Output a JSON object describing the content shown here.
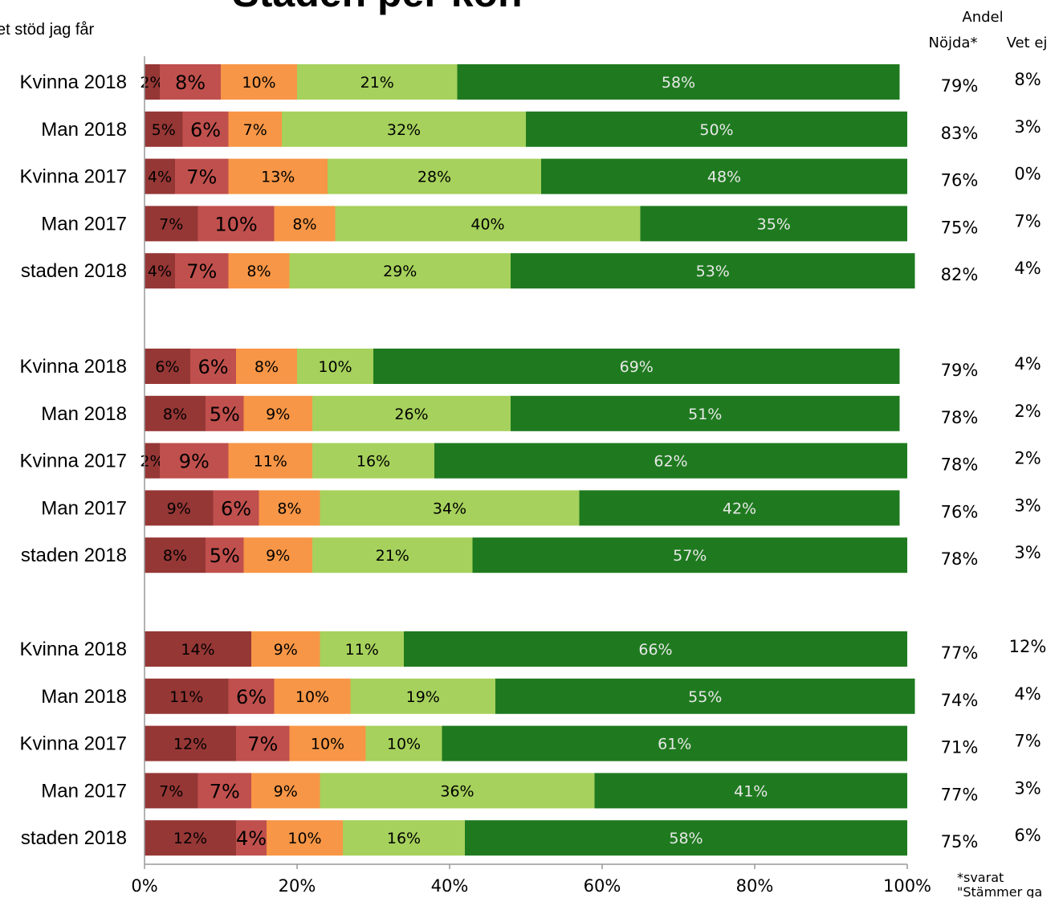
{
  "page": {
    "title": "Staden per kön",
    "top_left_text": "et stöd jag får",
    "col_header_line1": "Andel",
    "col_header_nojda": "Nöjda*",
    "col_header_vetej": "Vet ej",
    "footnote_line1": "*svarat",
    "footnote_line2": "\"Stämmer ga"
  },
  "chart_data": {
    "type": "bar",
    "orientation": "horizontal",
    "stacked": true,
    "xlim": [
      0,
      100
    ],
    "x_ticks": [
      "0%",
      "20%",
      "40%",
      "60%",
      "80%",
      "100%"
    ],
    "grid": false,
    "segment_colors": [
      "#953735",
      "#c0504d",
      "#f79646",
      "#a6d15c",
      "#1f7a1f"
    ],
    "groups": [
      {
        "rows": [
          {
            "label": "Kvinna 2018",
            "values": [
              2,
              8,
              10,
              21,
              58
            ],
            "nojda": "79%",
            "vet_ej": "8%"
          },
          {
            "label": "Man 2018",
            "values": [
              5,
              6,
              7,
              32,
              50
            ],
            "nojda": "83%",
            "vet_ej": "3%"
          },
          {
            "label": "Kvinna 2017",
            "values": [
              4,
              7,
              13,
              28,
              48
            ],
            "nojda": "76%",
            "vet_ej": "0%"
          },
          {
            "label": "Man 2017",
            "values": [
              7,
              10,
              8,
              40,
              35
            ],
            "nojda": "75%",
            "vet_ej": "7%"
          },
          {
            "label": "staden 2018",
            "values": [
              4,
              7,
              8,
              29,
              53
            ],
            "nojda": "82%",
            "vet_ej": "4%"
          }
        ]
      },
      {
        "rows": [
          {
            "label": "Kvinna 2018",
            "values": [
              6,
              6,
              8,
              10,
              69
            ],
            "nojda": "79%",
            "vet_ej": "4%"
          },
          {
            "label": "Man 2018",
            "values": [
              8,
              5,
              9,
              26,
              51
            ],
            "nojda": "78%",
            "vet_ej": "2%"
          },
          {
            "label": "Kvinna 2017",
            "values": [
              2,
              9,
              11,
              16,
              62
            ],
            "nojda": "78%",
            "vet_ej": "2%"
          },
          {
            "label": "Man 2017",
            "values": [
              9,
              6,
              8,
              34,
              42
            ],
            "nojda": "76%",
            "vet_ej": "3%"
          },
          {
            "label": "staden 2018",
            "values": [
              8,
              5,
              9,
              21,
              57
            ],
            "nojda": "78%",
            "vet_ej": "3%"
          }
        ]
      },
      {
        "rows": [
          {
            "label": "Kvinna 2018",
            "values": [
              14,
              0,
              9,
              11,
              66
            ],
            "nojda": "77%",
            "vet_ej": "12%"
          },
          {
            "label": "Man 2018",
            "values": [
              11,
              6,
              10,
              19,
              55
            ],
            "nojda": "74%",
            "vet_ej": "4%"
          },
          {
            "label": "Kvinna 2017",
            "values": [
              12,
              7,
              10,
              10,
              61
            ],
            "nojda": "71%",
            "vet_ej": "7%"
          },
          {
            "label": "Man 2017",
            "values": [
              7,
              7,
              9,
              36,
              41
            ],
            "nojda": "77%",
            "vet_ej": "3%"
          },
          {
            "label": "staden 2018",
            "values": [
              12,
              4,
              10,
              16,
              58
            ],
            "nojda": "75%",
            "vet_ej": "6%"
          }
        ]
      }
    ]
  }
}
